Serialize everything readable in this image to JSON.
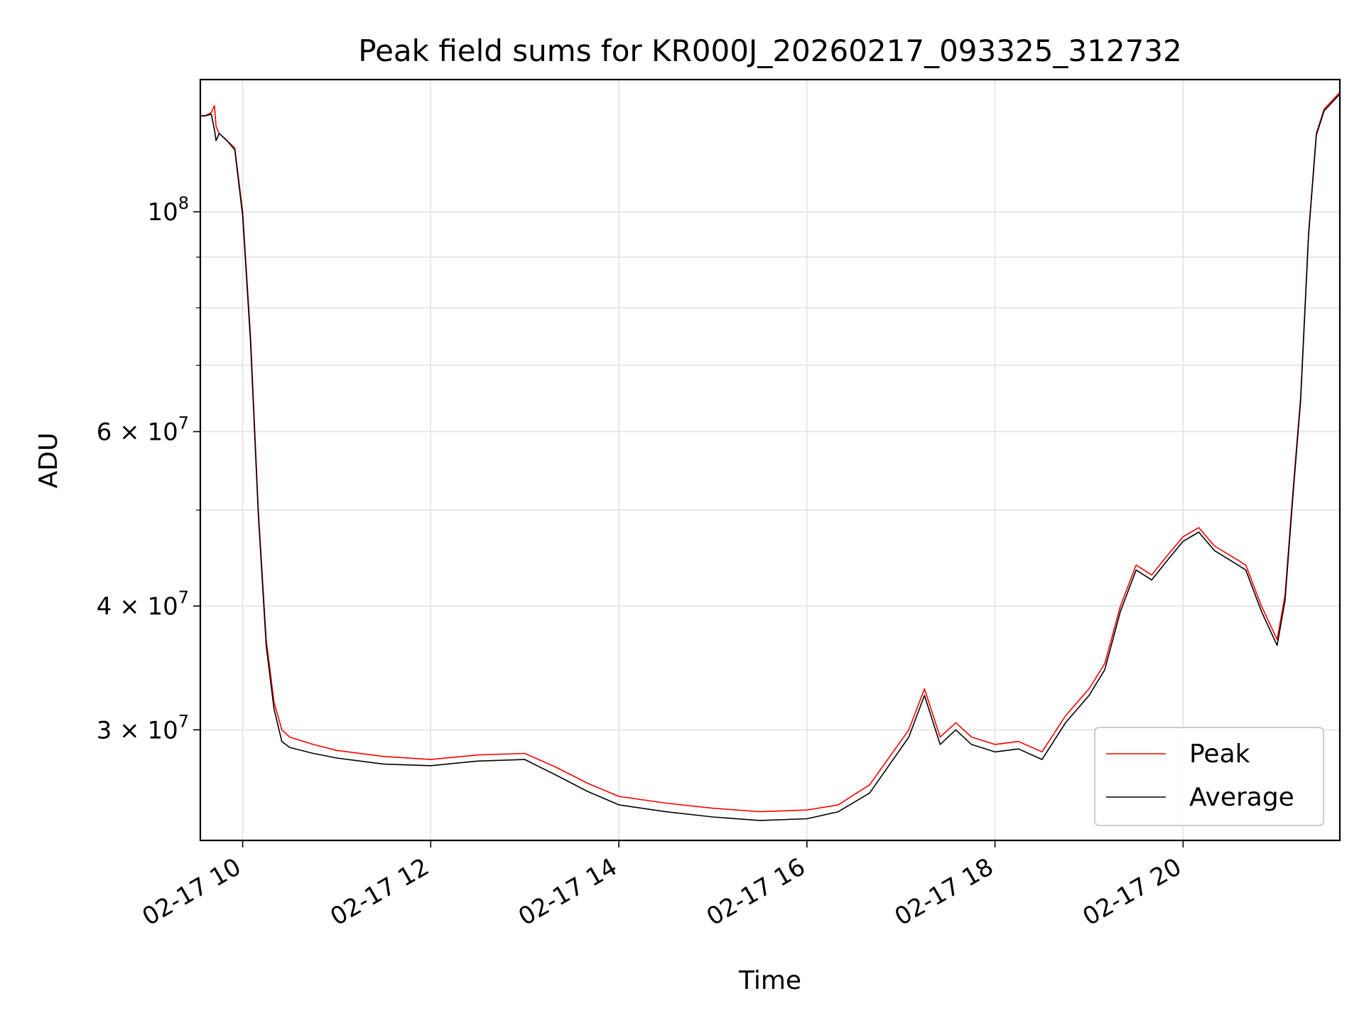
{
  "chart_data": {
    "type": "line",
    "title": "Peak field sums for KR000J_20260217_093325_312732",
    "xlabel": "Time",
    "ylabel": "ADU",
    "yscale": "log",
    "ylim": [
      23200000,
      136000000
    ],
    "xlim": [
      "02-17 09:33",
      "02-17 21:40"
    ],
    "grid": true,
    "legend": {
      "position": "lower-right",
      "entries": [
        "Peak",
        "Average"
      ]
    },
    "colors": {
      "Peak": "#ff0000",
      "Average": "#000000"
    },
    "x_ticks": [
      "02-17 10",
      "02-17 12",
      "02-17 14",
      "02-17 16",
      "02-17 18",
      "02-17 20"
    ],
    "y_ticks": [
      {
        "label": "3 × 10^7",
        "value": 30000000
      },
      {
        "label": "4 × 10^7",
        "value": 40000000
      },
      {
        "label": "6 × 10^7",
        "value": 60000000
      },
      {
        "label": "10^8",
        "value": 100000000
      }
    ],
    "y_minor_ticks": [
      50000000,
      70000000,
      80000000,
      90000000
    ],
    "x": [
      "09:33",
      "09:36",
      "09:40",
      "09:42",
      "09:43",
      "09:45",
      "09:50",
      "09:55",
      "10:00",
      "10:05",
      "10:10",
      "10:15",
      "10:20",
      "10:25",
      "10:30",
      "10:45",
      "11:00",
      "11:30",
      "12:00",
      "12:30",
      "13:00",
      "13:20",
      "13:40",
      "14:00",
      "14:30",
      "15:00",
      "15:30",
      "16:00",
      "16:20",
      "16:40",
      "16:55",
      "17:05",
      "17:15",
      "17:25",
      "17:35",
      "17:45",
      "18:00",
      "18:15",
      "18:30",
      "18:45",
      "19:00",
      "19:10",
      "19:20",
      "19:30",
      "19:40",
      "19:50",
      "20:00",
      "20:10",
      "20:20",
      "20:30",
      "20:40",
      "20:50",
      "21:00",
      "21:05",
      "21:10",
      "21:15",
      "21:20",
      "21:25",
      "21:30",
      "21:40"
    ],
    "series": [
      {
        "name": "Peak",
        "values": [
          125000000,
          125000000,
          126000000,
          128000000,
          122000000,
          120000000,
          118000000,
          116000000,
          100000000,
          75000000,
          50000000,
          37000000,
          32000000,
          30000000,
          29500000,
          29000000,
          28600000,
          28200000,
          28000000,
          28300000,
          28400000,
          27500000,
          26500000,
          25700000,
          25300000,
          25000000,
          24800000,
          24900000,
          25200000,
          26400000,
          28500000,
          30000000,
          33000000,
          29500000,
          30500000,
          29500000,
          29000000,
          29200000,
          28500000,
          31000000,
          33000000,
          35000000,
          40000000,
          44000000,
          43000000,
          45000000,
          47000000,
          48000000,
          46000000,
          45000000,
          44000000,
          40000000,
          37000000,
          41000000,
          52000000,
          65000000,
          95000000,
          120000000,
          127000000,
          132000000
        ]
      },
      {
        "name": "Average",
        "values": [
          125000000,
          125000000,
          125500000,
          121000000,
          118000000,
          120000000,
          118000000,
          115500000,
          99000000,
          74000000,
          49500000,
          36500000,
          31500000,
          29200000,
          28800000,
          28400000,
          28100000,
          27700000,
          27600000,
          27900000,
          28000000,
          27000000,
          26000000,
          25200000,
          24800000,
          24500000,
          24300000,
          24400000,
          24800000,
          25900000,
          28000000,
          29500000,
          32500000,
          29000000,
          30000000,
          29000000,
          28500000,
          28700000,
          28000000,
          30500000,
          32500000,
          34500000,
          39500000,
          43500000,
          42500000,
          44500000,
          46500000,
          47500000,
          45500000,
          44500000,
          43500000,
          39500000,
          36500000,
          40500000,
          51500000,
          64500000,
          94500000,
          119500000,
          126500000,
          131500000
        ]
      }
    ]
  }
}
